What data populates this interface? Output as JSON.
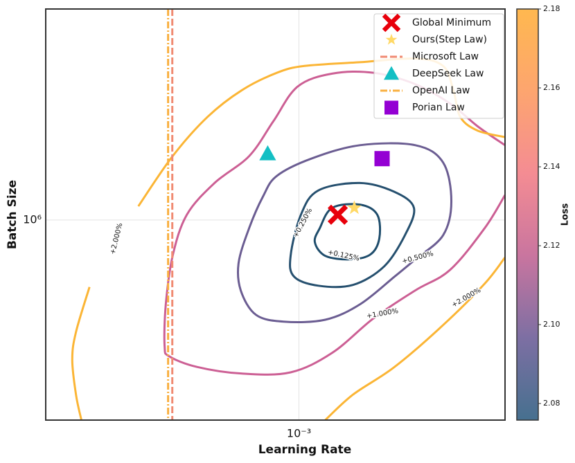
{
  "chart_data": {
    "type": "contour",
    "xlabel": "Learning Rate",
    "ylabel": "Batch Size",
    "xscale": "log",
    "yscale": "log",
    "xlim": [
      0.000281,
      0.00281
    ],
    "ylim": [
      326000.0,
      3260000.0
    ],
    "xticks": [
      {
        "value": 0.001,
        "label": "10⁻³"
      }
    ],
    "yticks": [
      {
        "value": 1000000,
        "label": "10⁶"
      }
    ],
    "grid": true,
    "legend": "upper right",
    "colorbar": {
      "label": "Loss",
      "clim": [
        2.0758,
        2.18
      ],
      "ticks": [
        2.08,
        {
          "value": 2.1,
          "label": "2.10"
        },
        2.12,
        2.14,
        2.16,
        2.18
      ],
      "colors": [
        "#46708f",
        "#7d6fa3",
        "#c9759f",
        "#f48c93",
        "#fda56f",
        "#ffb84f"
      ]
    },
    "contours": [
      {
        "level": 0.125,
        "level_label": "+0.125%",
        "color": "#1f4d6c",
        "pieces": [
          {
            "closed": true,
            "x": [
              0.00111,
              0.001181,
              0.001357,
              0.001481,
              0.001496,
              0.00143,
              0.001288,
              0.001141,
              0.001083
            ],
            "y": [
              955000.0,
              1070000.0,
              1090000.0,
              1030000.0,
              901000.0,
              824000.0,
              802000.0,
              818000.0,
              883000.0
            ]
          }
        ]
      },
      {
        "level": 0.25,
        "level_label": "+0.250%",
        "color": "#26506f",
        "pieces": [
          {
            "closed": true,
            "x": [
              0.001102,
              0.001357,
              0.001615,
              0.00178,
              0.001701,
              0.001533,
              0.001311,
              0.001102,
              0.000976,
              0.000959,
              0.00101
            ],
            "y": [
              1180000.0,
              1230000.0,
              1170000.0,
              1070000.0,
              918000.0,
              771000.0,
              695000.0,
              692000.0,
              728000.0,
              818000.0,
              1030000.0
            ]
          }
        ]
      },
      {
        "level": 0.5,
        "level_label": "+0.500%",
        "color": "#6b5d92",
        "pieces": [
          {
            "closed": true,
            "x": [
              0.000895,
              0.001064,
              0.001357,
              0.001792,
              0.00206,
              0.002147,
              0.00206,
              0.001792,
              0.001615,
              0.001357,
              0.001141,
              0.000926,
              0.000806,
              0.000747,
              0.000739,
              0.000779,
              0.000835
            ],
            "y": [
              1280000.0,
              1410000.0,
              1520000.0,
              1520000.0,
              1380000.0,
              1110000.0,
              918000.0,
              802000.0,
              728000.0,
              623000.0,
              572000.0,
              566000.0,
              588000.0,
              674000.0,
              786000.0,
              955000.0,
              1140000.0
            ]
          }
        ]
      },
      {
        "level": 1,
        "level_label": "+1.000%",
        "color": "#cc5f94",
        "pieces": [
          {
            "closed": false,
            "x": [
              0.00281,
              0.002449,
              0.002133,
              0.001792,
              0.001455,
              0.001181,
              0.000993,
              0.00088,
              0.000779,
              0.000655,
              0.00057,
              0.000531,
              0.000513,
              0.00051,
              0.000522,
              0.0006,
              0.000752,
              0.000959,
              0.001181,
              0.001455,
              0.001792,
              0.002133,
              0.002537,
              0.00281
            ],
            "y": [
              1520000.0,
              1690000.0,
              1920000.0,
              2140000.0,
              2280000.0,
              2270000.0,
              2110000.0,
              1740000.0,
              1430000.0,
              1230000.0,
              1030000.0,
              818000.0,
              623000.0,
              494000.0,
              466000.0,
              439000.0,
              423000.0,
              426000.0,
              475000.0,
              577000.0,
              674000.0,
              756000.0,
              955000.0,
              1150000.0
            ]
          }
        ]
      },
      {
        "level": 2,
        "level_label": "+2.000%",
        "color": "#fbb535",
        "pieces": [
          {
            "closed": false,
            "x": [
              0.000447,
              0.000531,
              0.000632,
              0.000752,
              0.000895,
              0.001028,
              0.001357,
              0.001792,
              0.00206,
              0.002169,
              0.002246,
              0.002449,
              0.00281
            ],
            "y": [
              1080000.0,
              1430000.0,
              1780000.0,
              2070000.0,
              2280000.0,
              2370000.0,
              2420000.0,
              2470000.0,
              2370000.0,
              2070000.0,
              1780000.0,
              1650000.0,
              1590000.0
            ]
          },
          {
            "closed": false,
            "x": [
              0.00035,
              0.000327,
              0.000321,
              0.000327,
              0.000336
            ],
            "y": [
              687000.0,
              534000.0,
              457000.0,
              376000.0,
              326000.0
            ]
          },
          {
            "closed": false,
            "x": [
              0.001141,
              0.001311,
              0.001615,
              0.00206,
              0.002537,
              0.00281
            ],
            "y": [
              326000.0,
              376000.0,
              439000.0,
              555000.0,
              700000.0,
              811000.0
            ]
          }
        ]
      }
    ],
    "markers": [
      {
        "name": "Global Minimum",
        "kind": "point",
        "marker": "x",
        "color": "#e8000b",
        "x": 0.001215,
        "y": 1030000.0
      },
      {
        "name": "Ours(Step Law)",
        "kind": "point",
        "marker": "star",
        "color": "#ffd966",
        "x": 0.00132,
        "y": 1070000.0
      },
      {
        "name": "Microsoft Law",
        "kind": "vline",
        "style": "dashed",
        "color": "#f08a72",
        "x": 0.00053
      },
      {
        "name": "DeepSeek Law",
        "kind": "point",
        "marker": "triangle",
        "color": "#13bfc4",
        "x": 0.000855,
        "y": 1450000.0
      },
      {
        "name": "OpenAI Law",
        "kind": "vline",
        "style": "dashdot",
        "color": "#f9b040",
        "x": 0.000519
      },
      {
        "name": "Porian Law",
        "kind": "point",
        "marker": "square",
        "color": "#9400d3",
        "x": 0.001517,
        "y": 1410000.0
      }
    ]
  }
}
